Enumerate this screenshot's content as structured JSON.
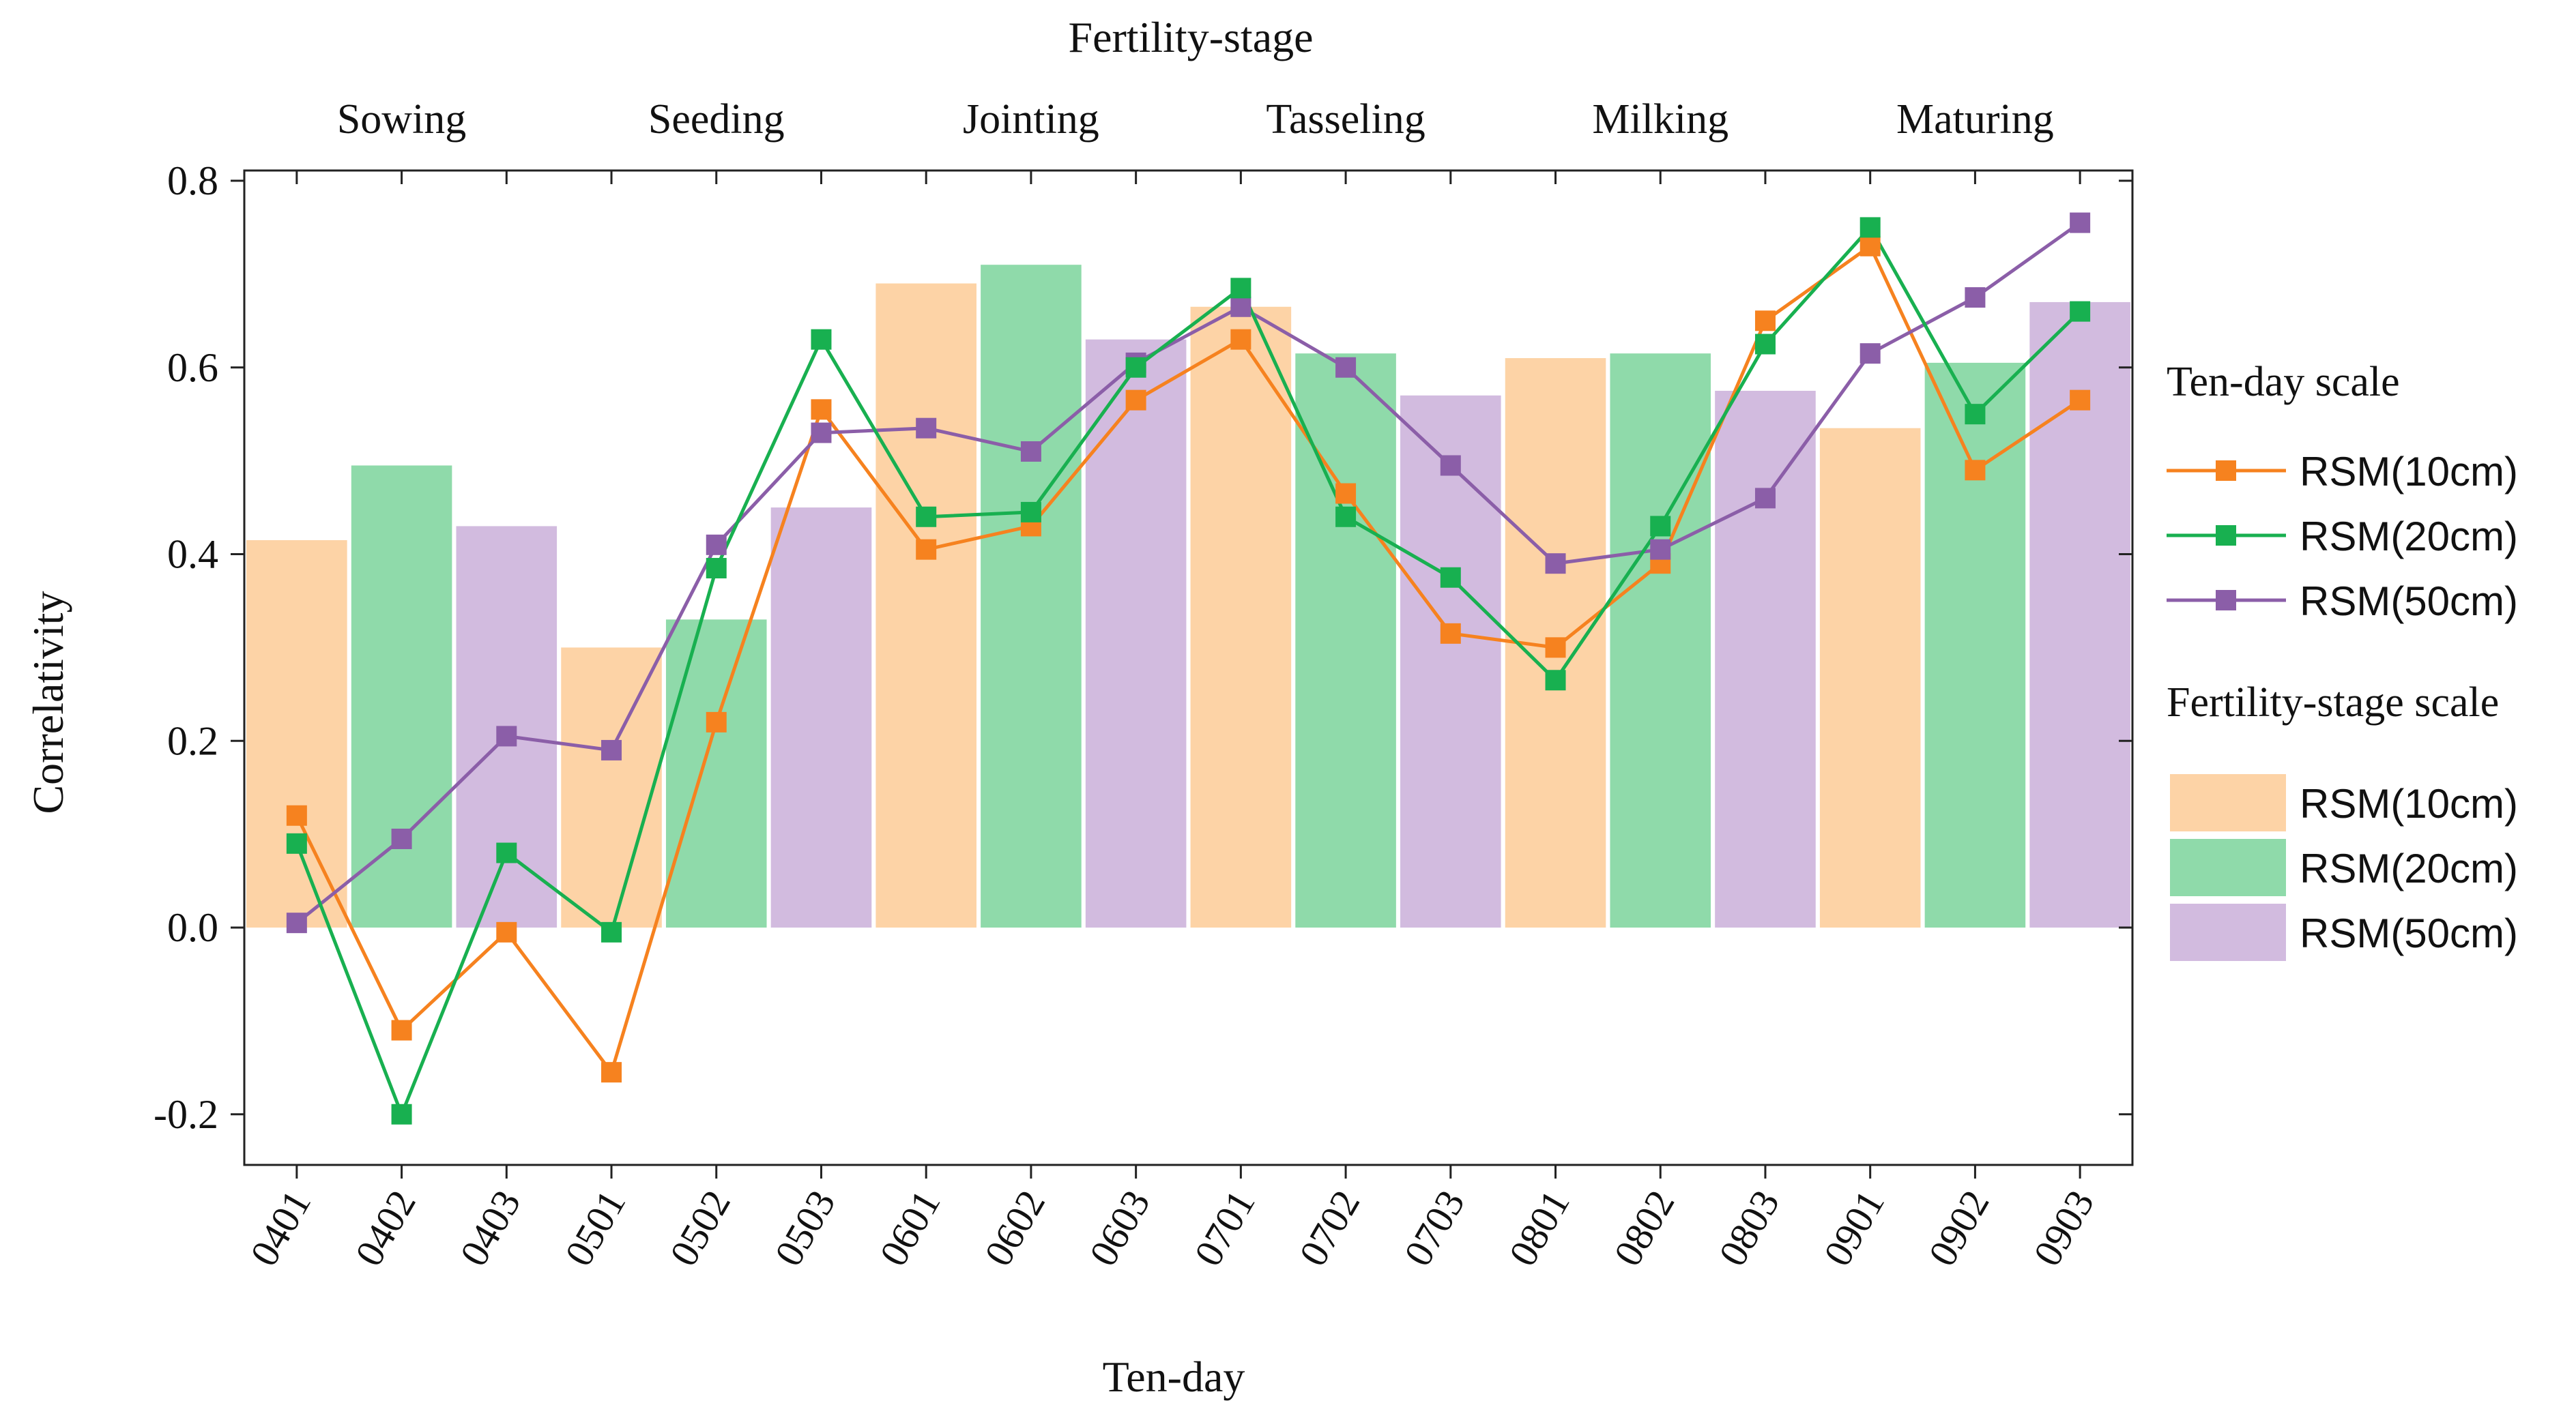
{
  "chart_data": {
    "type": "bar+line",
    "top_title": "Fertility-stage",
    "stages": [
      "Sowing",
      "Seeding",
      "Jointing",
      "Tasseling",
      "Milking",
      "Maturing"
    ],
    "categories": [
      "0401",
      "0402",
      "0403",
      "0501",
      "0502",
      "0503",
      "0601",
      "0602",
      "0603",
      "0701",
      "0702",
      "0703",
      "0801",
      "0802",
      "0803",
      "0901",
      "0902",
      "0903"
    ],
    "xlabel": "Ten-day",
    "ylabel": "Correlativity",
    "ylim": [
      -0.25,
      0.8
    ],
    "yticks": [
      -0.2,
      0.0,
      0.2,
      0.4,
      0.6,
      0.8
    ],
    "ytick_labels": [
      "-0.2",
      "0.0",
      "0.2",
      "0.4",
      "0.6",
      "0.8"
    ],
    "colors": {
      "line_10": "#f6821f",
      "line_20": "#18b050",
      "line_50": "#8b5ea8",
      "bar_10": "#fdd3a6",
      "bar_20": "#8fdaaa",
      "bar_50": "#d2bbdf"
    },
    "line_series": [
      {
        "name": "RSM(10cm)",
        "key": "10",
        "values": [
          0.12,
          -0.11,
          -0.005,
          -0.155,
          0.22,
          0.555,
          0.405,
          0.43,
          0.565,
          0.63,
          0.465,
          0.315,
          0.3,
          0.39,
          0.65,
          0.73,
          0.49,
          0.565
        ]
      },
      {
        "name": "RSM(20cm)",
        "key": "20",
        "values": [
          0.09,
          -0.2,
          0.08,
          -0.005,
          0.385,
          0.63,
          0.44,
          0.445,
          0.6,
          0.685,
          0.44,
          0.375,
          0.265,
          0.43,
          0.625,
          0.75,
          0.55,
          0.66
        ]
      },
      {
        "name": "RSM(50cm)",
        "key": "50",
        "values": [
          0.005,
          0.095,
          0.205,
          0.19,
          0.41,
          0.53,
          0.535,
          0.51,
          0.605,
          0.665,
          0.6,
          0.495,
          0.39,
          0.405,
          0.46,
          0.615,
          0.675,
          0.755
        ]
      }
    ],
    "bar_series": [
      {
        "name": "RSM(10cm)",
        "key": "10",
        "values": [
          0.415,
          0.3,
          0.69,
          0.665,
          0.61,
          0.535
        ]
      },
      {
        "name": "RSM(20cm)",
        "key": "20",
        "values": [
          0.495,
          0.33,
          0.71,
          0.615,
          0.615,
          0.605
        ]
      },
      {
        "name": "RSM(50cm)",
        "key": "50",
        "values": [
          0.43,
          0.45,
          0.63,
          0.57,
          0.575,
          0.67
        ]
      }
    ],
    "legend": {
      "ten_day_title": "Ten-day scale",
      "stage_title": "Fertility-stage scale",
      "placement": "right"
    }
  }
}
